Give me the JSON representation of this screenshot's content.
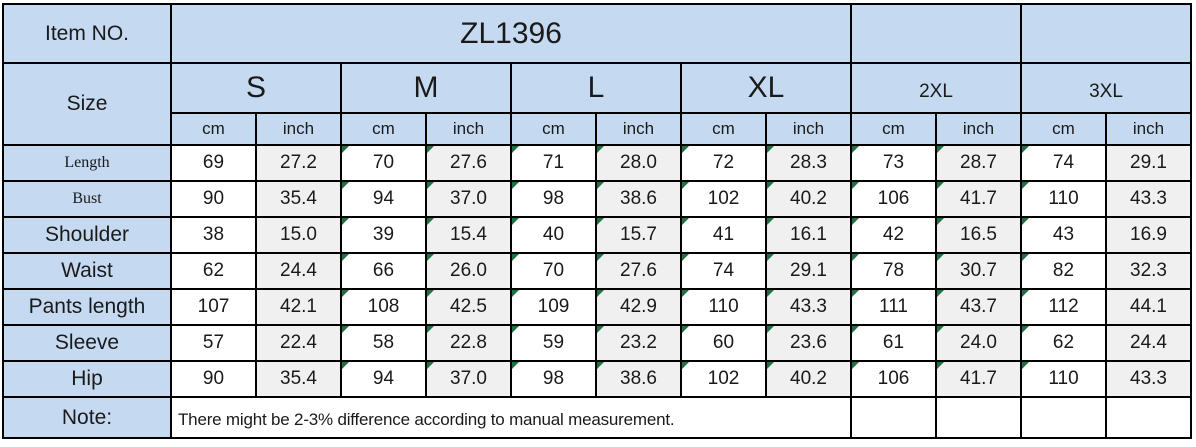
{
  "table": {
    "item_no_label": "Item NO.",
    "item_no_value": "ZL1396",
    "size_label": "Size",
    "sizes": [
      "S",
      "M",
      "L",
      "XL",
      "2XL",
      "3XL"
    ],
    "unit_headers": [
      "cm",
      "inch"
    ],
    "rows": [
      {
        "label": "Length",
        "values": [
          "69",
          "27.2",
          "70",
          "27.6",
          "71",
          "28.0",
          "72",
          "28.3",
          "73",
          "28.7",
          "74",
          "29.1"
        ]
      },
      {
        "label": "Bust",
        "values": [
          "90",
          "35.4",
          "94",
          "37.0",
          "98",
          "38.6",
          "102",
          "40.2",
          "106",
          "41.7",
          "110",
          "43.3"
        ]
      },
      {
        "label": "Shoulder",
        "values": [
          "38",
          "15.0",
          "39",
          "15.4",
          "40",
          "15.7",
          "41",
          "16.1",
          "42",
          "16.5",
          "43",
          "16.9"
        ]
      },
      {
        "label": "Waist",
        "values": [
          "62",
          "24.4",
          "66",
          "26.0",
          "70",
          "27.6",
          "74",
          "29.1",
          "78",
          "30.7",
          "82",
          "32.3"
        ]
      },
      {
        "label": "Pants length",
        "values": [
          "107",
          "42.1",
          "108",
          "42.5",
          "109",
          "42.9",
          "110",
          "43.3",
          "111",
          "43.7",
          "112",
          "44.1"
        ]
      },
      {
        "label": "Sleeve",
        "values": [
          "57",
          "22.4",
          "58",
          "22.8",
          "59",
          "23.2",
          "60",
          "23.6",
          "61",
          "24.0",
          "62",
          "24.4"
        ]
      },
      {
        "label": "Hip",
        "values": [
          "90",
          "35.4",
          "94",
          "37.0",
          "98",
          "38.6",
          "102",
          "40.2",
          "106",
          "41.7",
          "110",
          "43.3"
        ]
      }
    ],
    "error_marker_columns": [
      2,
      3,
      4,
      5,
      6,
      7,
      8,
      9,
      10
    ],
    "note_label": "Note:",
    "note_text": "There might be 2-3% difference according to manual measurement.",
    "colors": {
      "header_blue": "#c5d9f1",
      "inch_column_gray": "#f0f0f0",
      "border_black": "#000000",
      "error_indicator_green": "#1e7145"
    }
  },
  "chart_data": {
    "type": "table",
    "title": "ZL1396",
    "columns": [
      "Size",
      "S cm",
      "S inch",
      "M cm",
      "M inch",
      "L cm",
      "L inch",
      "XL cm",
      "XL inch",
      "2XL cm",
      "2XL inch",
      "3XL cm",
      "3XL inch"
    ],
    "rows": [
      [
        "Length",
        69,
        27.2,
        70,
        27.6,
        71,
        28.0,
        72,
        28.3,
        73,
        28.7,
        74,
        29.1
      ],
      [
        "Bust",
        90,
        35.4,
        94,
        37.0,
        98,
        38.6,
        102,
        40.2,
        106,
        41.7,
        110,
        43.3
      ],
      [
        "Shoulder",
        38,
        15.0,
        39,
        15.4,
        40,
        15.7,
        41,
        16.1,
        42,
        16.5,
        43,
        16.9
      ],
      [
        "Waist",
        62,
        24.4,
        66,
        26.0,
        70,
        27.6,
        74,
        29.1,
        78,
        30.7,
        82,
        32.3
      ],
      [
        "Pants length",
        107,
        42.1,
        108,
        42.5,
        109,
        42.9,
        110,
        43.3,
        111,
        43.7,
        112,
        44.1
      ],
      [
        "Sleeve",
        57,
        22.4,
        58,
        22.8,
        59,
        23.2,
        60,
        23.6,
        61,
        24.0,
        62,
        24.4
      ],
      [
        "Hip",
        90,
        35.4,
        94,
        37.0,
        98,
        38.6,
        102,
        40.2,
        106,
        41.7,
        110,
        43.3
      ]
    ],
    "note": "There might be 2-3% difference according to manual measurement."
  }
}
